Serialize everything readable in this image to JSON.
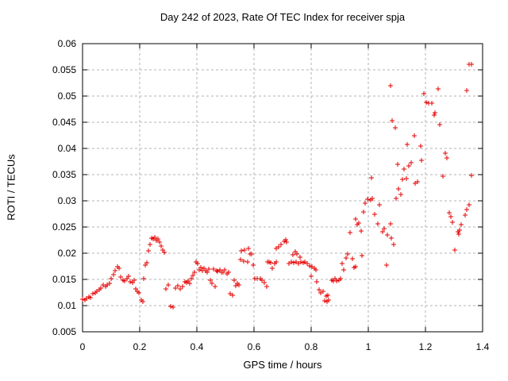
{
  "chart_data": {
    "type": "scatter",
    "title": "Day 242 of 2023, Rate Of TEC Index for receiver spja",
    "xlabel": "GPS time / hours",
    "ylabel": "ROTI / TECUs",
    "xlim": [
      0,
      1.4
    ],
    "ylim": [
      0.005,
      0.06
    ],
    "xticks": [
      0,
      0.2,
      0.4,
      0.6,
      0.8,
      1.0,
      1.2,
      1.4
    ],
    "xtick_labels": [
      "0",
      "0.2",
      "0.4",
      "0.6",
      "0.8",
      "1",
      "1.2",
      "1.4"
    ],
    "yticks": [
      0.005,
      0.01,
      0.015,
      0.02,
      0.025,
      0.03,
      0.035,
      0.04,
      0.045,
      0.05,
      0.055,
      0.06
    ],
    "ytick_labels": [
      "0.005",
      "0.01",
      "0.015",
      "0.02",
      "0.025",
      "0.03",
      "0.035",
      "0.04",
      "0.045",
      "0.05",
      "0.055",
      "0.06"
    ],
    "grid": true,
    "legend": "none",
    "marker": {
      "shape": "plus",
      "size": 7,
      "color": "#e60000"
    },
    "colors": {
      "grid": "#b3b3b3",
      "axis": "#000000",
      "background": "#ffffff",
      "text": "#000000"
    },
    "series": [
      {
        "name": "ROTI",
        "points": [
          [
            0.0,
            0.0112
          ],
          [
            0.008,
            0.011
          ],
          [
            0.015,
            0.0114
          ],
          [
            0.022,
            0.0117
          ],
          [
            0.029,
            0.0115
          ],
          [
            0.036,
            0.0122
          ],
          [
            0.044,
            0.0124
          ],
          [
            0.051,
            0.0128
          ],
          [
            0.058,
            0.0131
          ],
          [
            0.065,
            0.0134
          ],
          [
            0.072,
            0.0139
          ],
          [
            0.08,
            0.0136
          ],
          [
            0.087,
            0.014
          ],
          [
            0.094,
            0.0143
          ],
          [
            0.101,
            0.0152
          ],
          [
            0.108,
            0.0159
          ],
          [
            0.115,
            0.0166
          ],
          [
            0.121,
            0.0174
          ],
          [
            0.128,
            0.0171
          ],
          [
            0.134,
            0.0155
          ],
          [
            0.141,
            0.0149
          ],
          [
            0.148,
            0.0147
          ],
          [
            0.155,
            0.0152
          ],
          [
            0.161,
            0.0156
          ],
          [
            0.168,
            0.0146
          ],
          [
            0.175,
            0.0144
          ],
          [
            0.181,
            0.0149
          ],
          [
            0.186,
            0.0132
          ],
          [
            0.192,
            0.0128
          ],
          [
            0.198,
            0.0124
          ],
          [
            0.205,
            0.0111
          ],
          [
            0.211,
            0.0107
          ],
          [
            0.215,
            0.0152
          ],
          [
            0.219,
            0.0177
          ],
          [
            0.225,
            0.0182
          ],
          [
            0.231,
            0.0204
          ],
          [
            0.236,
            0.0217
          ],
          [
            0.242,
            0.0229
          ],
          [
            0.247,
            0.0227
          ],
          [
            0.253,
            0.0231
          ],
          [
            0.258,
            0.0224
          ],
          [
            0.264,
            0.0227
          ],
          [
            0.269,
            0.0221
          ],
          [
            0.275,
            0.0214
          ],
          [
            0.281,
            0.0206
          ],
          [
            0.286,
            0.0202
          ],
          [
            0.292,
            0.0132
          ],
          [
            0.3,
            0.0139
          ],
          [
            0.308,
            0.0099
          ],
          [
            0.317,
            0.0097
          ],
          [
            0.325,
            0.0134
          ],
          [
            0.333,
            0.0138
          ],
          [
            0.342,
            0.0132
          ],
          [
            0.35,
            0.0136
          ],
          [
            0.358,
            0.0146
          ],
          [
            0.364,
            0.0144
          ],
          [
            0.369,
            0.0147
          ],
          [
            0.375,
            0.0143
          ],
          [
            0.381,
            0.0151
          ],
          [
            0.386,
            0.0158
          ],
          [
            0.392,
            0.0163
          ],
          [
            0.397,
            0.0184
          ],
          [
            0.403,
            0.0181
          ],
          [
            0.408,
            0.0168
          ],
          [
            0.414,
            0.0172
          ],
          [
            0.419,
            0.0167
          ],
          [
            0.425,
            0.0171
          ],
          [
            0.431,
            0.0166
          ],
          [
            0.436,
            0.0164
          ],
          [
            0.442,
            0.017
          ],
          [
            0.447,
            0.0149
          ],
          [
            0.453,
            0.0142
          ],
          [
            0.458,
            0.017
          ],
          [
            0.464,
            0.0136
          ],
          [
            0.469,
            0.0166
          ],
          [
            0.473,
            0.0165
          ],
          [
            0.481,
            0.0168
          ],
          [
            0.486,
            0.0164
          ],
          [
            0.492,
            0.0163
          ],
          [
            0.498,
            0.0168
          ],
          [
            0.505,
            0.0161
          ],
          [
            0.512,
            0.0163
          ],
          [
            0.517,
            0.0122
          ],
          [
            0.526,
            0.0119
          ],
          [
            0.531,
            0.0149
          ],
          [
            0.535,
            0.0138
          ],
          [
            0.543,
            0.0142
          ],
          [
            0.547,
            0.0139
          ],
          [
            0.553,
            0.0188
          ],
          [
            0.556,
            0.0204
          ],
          [
            0.565,
            0.0185
          ],
          [
            0.568,
            0.0206
          ],
          [
            0.577,
            0.0183
          ],
          [
            0.58,
            0.0209
          ],
          [
            0.586,
            0.0198
          ],
          [
            0.591,
            0.0199
          ],
          [
            0.597,
            0.0178
          ],
          [
            0.604,
            0.0152
          ],
          [
            0.612,
            0.0151
          ],
          [
            0.621,
            0.0152
          ],
          [
            0.629,
            0.0149
          ],
          [
            0.637,
            0.0144
          ],
          [
            0.644,
            0.0136
          ],
          [
            0.646,
            0.0183
          ],
          [
            0.652,
            0.0184
          ],
          [
            0.659,
            0.0182
          ],
          [
            0.665,
            0.0171
          ],
          [
            0.672,
            0.018
          ],
          [
            0.677,
            0.0183
          ],
          [
            0.677,
            0.0209
          ],
          [
            0.686,
            0.0212
          ],
          [
            0.695,
            0.0216
          ],
          [
            0.705,
            0.0222
          ],
          [
            0.711,
            0.0226
          ],
          [
            0.714,
            0.0221
          ],
          [
            0.723,
            0.0181
          ],
          [
            0.731,
            0.0184
          ],
          [
            0.736,
            0.0197
          ],
          [
            0.739,
            0.0182
          ],
          [
            0.744,
            0.0203
          ],
          [
            0.747,
            0.0183
          ],
          [
            0.751,
            0.0198
          ],
          [
            0.755,
            0.0181
          ],
          [
            0.76,
            0.0193
          ],
          [
            0.763,
            0.0184
          ],
          [
            0.771,
            0.0182
          ],
          [
            0.779,
            0.0184
          ],
          [
            0.786,
            0.0181
          ],
          [
            0.794,
            0.0176
          ],
          [
            0.801,
            0.0156
          ],
          [
            0.804,
            0.0175
          ],
          [
            0.81,
            0.0171
          ],
          [
            0.816,
            0.0168
          ],
          [
            0.819,
            0.0145
          ],
          [
            0.827,
            0.0131
          ],
          [
            0.834,
            0.0124
          ],
          [
            0.841,
            0.0127
          ],
          [
            0.847,
            0.0109
          ],
          [
            0.853,
            0.0118
          ],
          [
            0.855,
            0.0107
          ],
          [
            0.859,
            0.0119
          ],
          [
            0.862,
            0.011
          ],
          [
            0.871,
            0.0149
          ],
          [
            0.878,
            0.0147
          ],
          [
            0.884,
            0.0151
          ],
          [
            0.89,
            0.0147
          ],
          [
            0.896,
            0.0149
          ],
          [
            0.903,
            0.0152
          ],
          [
            0.908,
            0.018
          ],
          [
            0.915,
            0.0168
          ],
          [
            0.921,
            0.0191
          ],
          [
            0.929,
            0.0199
          ],
          [
            0.936,
            0.024
          ],
          [
            0.945,
            0.019
          ],
          [
            0.949,
            0.0173
          ],
          [
            0.956,
            0.0174
          ],
          [
            0.956,
            0.0265
          ],
          [
            0.961,
            0.0254
          ],
          [
            0.968,
            0.0257
          ],
          [
            0.975,
            0.0242
          ],
          [
            0.977,
            0.0196
          ],
          [
            0.982,
            0.0279
          ],
          [
            0.989,
            0.0296
          ],
          [
            0.998,
            0.0303
          ],
          [
            1.007,
            0.0302
          ],
          [
            1.01,
            0.0344
          ],
          [
            1.014,
            0.0304
          ],
          [
            1.021,
            0.0275
          ],
          [
            1.032,
            0.0256
          ],
          [
            1.04,
            0.0292
          ],
          [
            1.049,
            0.0241
          ],
          [
            1.056,
            0.0247
          ],
          [
            1.065,
            0.0177
          ],
          [
            1.068,
            0.0235
          ],
          [
            1.077,
            0.0256
          ],
          [
            1.079,
            0.052
          ],
          [
            1.08,
            0.0229
          ],
          [
            1.083,
            0.0453
          ],
          [
            1.089,
            0.0216
          ],
          [
            1.095,
            0.0439
          ],
          [
            1.098,
            0.0305
          ],
          [
            1.102,
            0.0369
          ],
          [
            1.105,
            0.0322
          ],
          [
            1.114,
            0.0312
          ],
          [
            1.12,
            0.0341
          ],
          [
            1.126,
            0.0361
          ],
          [
            1.133,
            0.0342
          ],
          [
            1.137,
            0.0407
          ],
          [
            1.142,
            0.0366
          ],
          [
            1.151,
            0.0372
          ],
          [
            1.16,
            0.0424
          ],
          [
            1.165,
            0.0334
          ],
          [
            1.172,
            0.0336
          ],
          [
            1.183,
            0.0405
          ],
          [
            1.186,
            0.0377
          ],
          [
            1.195,
            0.0505
          ],
          [
            1.202,
            0.0488
          ],
          [
            1.21,
            0.0487
          ],
          [
            1.222,
            0.0486
          ],
          [
            1.23,
            0.0464
          ],
          [
            1.234,
            0.0468
          ],
          [
            1.245,
            0.0514
          ],
          [
            1.25,
            0.0446
          ],
          [
            1.26,
            0.0347
          ],
          [
            1.269,
            0.0391
          ],
          [
            1.276,
            0.0382
          ],
          [
            1.283,
            0.0278
          ],
          [
            1.29,
            0.027
          ],
          [
            1.294,
            0.0259
          ],
          [
            1.304,
            0.0206
          ],
          [
            1.313,
            0.0241
          ],
          [
            1.316,
            0.0237
          ],
          [
            1.319,
            0.0244
          ],
          [
            1.325,
            0.0254
          ],
          [
            1.338,
            0.0272
          ],
          [
            1.344,
            0.051
          ],
          [
            1.345,
            0.0283
          ],
          [
            1.353,
            0.0293
          ],
          [
            1.353,
            0.0561
          ],
          [
            1.362,
            0.0349
          ],
          [
            1.362,
            0.0561
          ]
        ]
      }
    ]
  }
}
